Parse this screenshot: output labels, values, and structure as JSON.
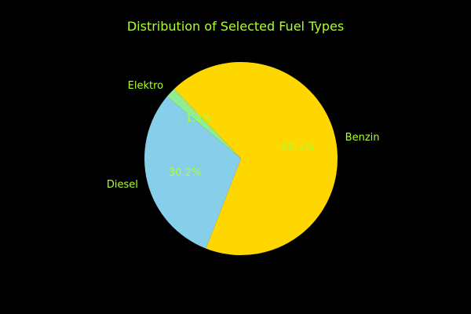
{
  "chart_data": {
    "type": "pie",
    "title": "Distribution of Selected Fuel Types",
    "slices": [
      {
        "label": "Diesel",
        "value": 30.2,
        "pct_label": "30.2%",
        "color": "#87CEEB"
      },
      {
        "label": "Benzin",
        "value": 68.1,
        "pct_label": "68.1%",
        "color": "#FFD700"
      },
      {
        "label": "Elektro",
        "value": 1.7,
        "pct_label": "1.7%",
        "color": "#90EE90"
      }
    ],
    "start_angle_deg": 140,
    "text_color": "#ADFF2F",
    "background": "#000000"
  }
}
